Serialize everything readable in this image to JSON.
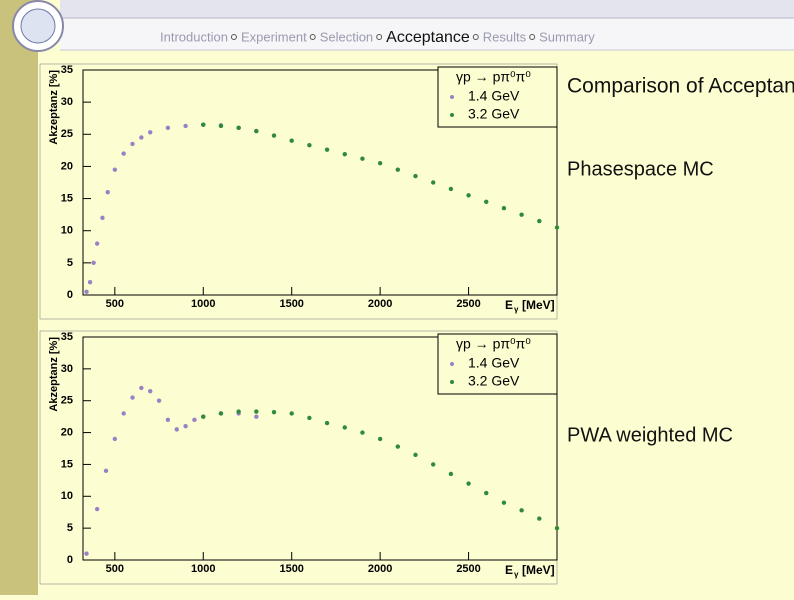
{
  "nav": {
    "items": [
      "Introduction",
      "Experiment",
      "Selection",
      "Acceptance",
      "Results",
      "Summary"
    ],
    "current": 3
  },
  "side": {
    "heading": "Comparison of Acceptance:",
    "label1": "Phasespace MC",
    "label2": "PWA weighted MC"
  },
  "chart_data": [
    {
      "type": "scatter",
      "legend_title": "γp → pπ⁰π⁰",
      "legend": "top right",
      "x_label": "E",
      "x_label_sub": "γ",
      "x_label_unit": "[MeV]",
      "y_label": "Akzeptanz [%]",
      "xlim": [
        320,
        3000
      ],
      "ylim": [
        0,
        35
      ],
      "xticks": [
        500,
        1000,
        1500,
        2000,
        2500
      ],
      "yticks": [
        0,
        5,
        10,
        15,
        20,
        25,
        30,
        35
      ],
      "series": [
        {
          "name": "1.4 GeV",
          "color": "#9a80c4",
          "x": [
            340,
            360,
            380,
            400,
            430,
            460,
            500,
            550,
            600,
            650,
            700,
            800,
            900,
            1000,
            1100,
            1200,
            1300
          ],
          "values": [
            0.5,
            2,
            5,
            8,
            12,
            16,
            19.5,
            22,
            23.5,
            24.5,
            25.3,
            26,
            26.3,
            26.5,
            26.4,
            26,
            25.5
          ]
        },
        {
          "name": "3.2 GeV",
          "color": "#2f8a3a",
          "x": [
            1000,
            1100,
            1200,
            1300,
            1400,
            1500,
            1600,
            1700,
            1800,
            1900,
            2000,
            2100,
            2200,
            2300,
            2400,
            2500,
            2600,
            2700,
            2800,
            2900,
            3000
          ],
          "values": [
            26.5,
            26.3,
            26,
            25.5,
            24.8,
            24,
            23.3,
            22.6,
            21.9,
            21.2,
            20.5,
            19.5,
            18.5,
            17.5,
            16.5,
            15.5,
            14.5,
            13.5,
            12.5,
            11.5,
            10.5
          ]
        }
      ]
    },
    {
      "type": "scatter",
      "legend_title": "γp → pπ⁰π⁰",
      "legend": "top right",
      "x_label": "E",
      "x_label_sub": "γ",
      "x_label_unit": "[MeV]",
      "y_label": "Akzeptanz [%]",
      "xlim": [
        320,
        3000
      ],
      "ylim": [
        0,
        35
      ],
      "xticks": [
        500,
        1000,
        1500,
        2000,
        2500
      ],
      "yticks": [
        0,
        5,
        10,
        15,
        20,
        25,
        30,
        35
      ],
      "series": [
        {
          "name": "1.4 GeV",
          "color": "#9a80c4",
          "x": [
            340,
            400,
            450,
            500,
            550,
            600,
            650,
            700,
            750,
            800,
            850,
            900,
            950,
            1000,
            1100,
            1200,
            1300
          ],
          "values": [
            1,
            8,
            14,
            19,
            23,
            25.5,
            27,
            26.5,
            25,
            22,
            20.5,
            21,
            22,
            22.5,
            23,
            23,
            22.5
          ]
        },
        {
          "name": "3.2 GeV",
          "color": "#2f8a3a",
          "x": [
            1000,
            1100,
            1200,
            1300,
            1400,
            1500,
            1600,
            1700,
            1800,
            1900,
            2000,
            2100,
            2200,
            2300,
            2400,
            2500,
            2600,
            2700,
            2800,
            2900,
            3000
          ],
          "values": [
            22.5,
            23,
            23.3,
            23.3,
            23.2,
            23,
            22.3,
            21.5,
            20.8,
            20,
            19,
            17.8,
            16.5,
            15,
            13.5,
            12,
            10.5,
            9,
            7.8,
            6.5,
            5
          ]
        }
      ]
    }
  ]
}
